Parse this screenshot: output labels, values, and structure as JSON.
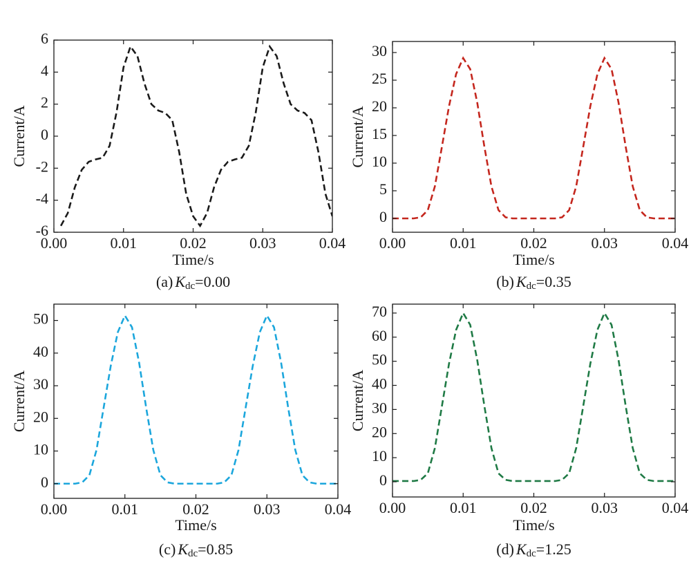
{
  "chart_data": [
    {
      "type": "line",
      "xlabel": "Time/s",
      "ylabel": "Current/A",
      "caption_prefix": "(a)",
      "caption_symbol": "K",
      "caption_subscript": "dc",
      "caption_value": "=0.00",
      "color": "#1a1a1a",
      "xlim": [
        0,
        0.04
      ],
      "xticks": [
        {
          "value": 0,
          "label": "0.00"
        },
        {
          "value": 0.01,
          "label": "0.01"
        },
        {
          "value": 0.02,
          "label": "0.02"
        },
        {
          "value": 0.03,
          "label": "0.03"
        },
        {
          "value": 0.04,
          "label": "0.04"
        }
      ],
      "ylim": [
        -6,
        6
      ],
      "yticks": [
        -6,
        -4,
        -2,
        0,
        2,
        4,
        6
      ],
      "x": [
        0.001,
        0.002,
        0.003,
        0.004,
        0.005,
        0.006,
        0.007,
        0.008,
        0.009,
        0.01,
        0.011,
        0.012,
        0.013,
        0.014,
        0.015,
        0.016,
        0.017,
        0.018,
        0.019,
        0.02,
        0.021,
        0.022,
        0.023,
        0.024,
        0.025,
        0.026,
        0.027,
        0.028,
        0.029,
        0.03,
        0.031,
        0.032,
        0.033,
        0.034,
        0.035,
        0.036,
        0.037,
        0.038,
        0.039,
        0.04
      ],
      "values": [
        -5.6,
        -4.8,
        -3.2,
        -2.1,
        -1.6,
        -1.45,
        -1.35,
        -0.6,
        1.5,
        4.3,
        5.6,
        5.0,
        3.3,
        2.0,
        1.6,
        1.45,
        1.0,
        -1.0,
        -3.6,
        -5.0,
        -5.6,
        -4.8,
        -3.2,
        -2.1,
        -1.6,
        -1.45,
        -1.35,
        -0.6,
        1.5,
        4.3,
        5.6,
        5.0,
        3.3,
        2.0,
        1.6,
        1.45,
        1.0,
        -1.0,
        -3.6,
        -5.0
      ]
    },
    {
      "type": "line",
      "xlabel": "Time/s",
      "ylabel": "Current/A",
      "caption_prefix": "(b)",
      "caption_symbol": "K",
      "caption_subscript": "dc",
      "caption_value": "=0.35",
      "color": "#c4261d",
      "xlim": [
        0,
        0.04
      ],
      "xticks": [
        {
          "value": 0,
          "label": "0.00"
        },
        {
          "value": 0.01,
          "label": "0.01"
        },
        {
          "value": 0.02,
          "label": "0.02"
        },
        {
          "value": 0.03,
          "label": "0.03"
        },
        {
          "value": 0.04,
          "label": "0.04"
        }
      ],
      "ylim": [
        -2.5,
        32
      ],
      "yticks": [
        0,
        5,
        10,
        15,
        20,
        25,
        30
      ],
      "x": [
        0,
        0.001,
        0.002,
        0.003,
        0.004,
        0.005,
        0.006,
        0.007,
        0.008,
        0.009,
        0.01,
        0.011,
        0.012,
        0.013,
        0.014,
        0.015,
        0.016,
        0.017,
        0.018,
        0.019,
        0.02,
        0.021,
        0.022,
        0.023,
        0.024,
        0.025,
        0.026,
        0.027,
        0.028,
        0.029,
        0.03,
        0.031,
        0.032,
        0.033,
        0.034,
        0.035,
        0.036,
        0.037,
        0.038,
        0.039,
        0.04
      ],
      "values": [
        0,
        0,
        0,
        0,
        0.2,
        1.5,
        5.8,
        13,
        20.3,
        26.1,
        29,
        27,
        20.9,
        13,
        5.8,
        1.5,
        0.2,
        0,
        0,
        0,
        0,
        0,
        0,
        0,
        0.2,
        1.5,
        5.8,
        13,
        20.3,
        26.1,
        29,
        27,
        20.9,
        13,
        5.8,
        1.5,
        0.2,
        0,
        0,
        0,
        0
      ]
    },
    {
      "type": "line",
      "xlabel": "Time/s",
      "ylabel": "Current/A",
      "caption_prefix": "(c)",
      "caption_symbol": "K",
      "caption_subscript": "dc",
      "caption_value": "=0.85",
      "color": "#1ba6dc",
      "xlim": [
        0,
        0.04
      ],
      "xticks": [
        {
          "value": 0,
          "label": "0.00"
        },
        {
          "value": 0.01,
          "label": "0.01"
        },
        {
          "value": 0.02,
          "label": "0.02"
        },
        {
          "value": 0.03,
          "label": "0.03"
        },
        {
          "value": 0.04,
          "label": "0.04"
        }
      ],
      "ylim": [
        -4.5,
        55
      ],
      "yticks": [
        0,
        10,
        20,
        30,
        40,
        50
      ],
      "x": [
        0,
        0.001,
        0.002,
        0.003,
        0.004,
        0.005,
        0.006,
        0.007,
        0.008,
        0.009,
        0.01,
        0.011,
        0.012,
        0.013,
        0.014,
        0.015,
        0.016,
        0.017,
        0.018,
        0.019,
        0.02,
        0.021,
        0.022,
        0.023,
        0.024,
        0.025,
        0.026,
        0.027,
        0.028,
        0.029,
        0.03,
        0.031,
        0.032,
        0.033,
        0.034,
        0.035,
        0.036,
        0.037,
        0.038,
        0.039,
        0.04
      ],
      "values": [
        0,
        0,
        0,
        0,
        0.4,
        2.6,
        10.3,
        23.2,
        36,
        46.4,
        51.5,
        47.9,
        37.1,
        23.2,
        10.3,
        2.6,
        0.4,
        0,
        0,
        0,
        0,
        0,
        0,
        0,
        0.4,
        2.6,
        10.3,
        23.2,
        36,
        46.4,
        51.5,
        47.9,
        37.1,
        23.2,
        10.3,
        2.6,
        0.4,
        0,
        0,
        0,
        0
      ]
    },
    {
      "type": "line",
      "xlabel": "Time/s",
      "ylabel": "Current/A",
      "caption_prefix": "(d)",
      "caption_symbol": "K",
      "caption_subscript": "dc",
      "caption_value": "=1.25",
      "color": "#1f7a45",
      "xlim": [
        0,
        0.04
      ],
      "xticks": [
        {
          "value": 0,
          "label": "0.00"
        },
        {
          "value": 0.01,
          "label": "0.01"
        },
        {
          "value": 0.02,
          "label": "0.02"
        },
        {
          "value": 0.03,
          "label": "0.03"
        },
        {
          "value": 0.04,
          "label": "0.04"
        }
      ],
      "ylim": [
        -6.3,
        73.7
      ],
      "yticks": [
        0,
        10,
        20,
        30,
        40,
        50,
        60,
        70
      ],
      "x": [
        0,
        0.001,
        0.002,
        0.003,
        0.004,
        0.005,
        0.006,
        0.007,
        0.008,
        0.009,
        0.01,
        0.011,
        0.012,
        0.013,
        0.014,
        0.015,
        0.016,
        0.017,
        0.018,
        0.019,
        0.02,
        0.021,
        0.022,
        0.023,
        0.024,
        0.025,
        0.026,
        0.027,
        0.028,
        0.029,
        0.03,
        0.031,
        0.032,
        0.033,
        0.034,
        0.035,
        0.036,
        0.037,
        0.038,
        0.039,
        0.04
      ],
      "values": [
        0.3,
        0.3,
        0.3,
        0.3,
        0.8,
        3.5,
        14,
        31.5,
        49,
        63,
        70,
        65.1,
        50.4,
        31.5,
        14,
        3.5,
        0.8,
        0.3,
        0.3,
        0.3,
        0.3,
        0.3,
        0.3,
        0.3,
        0.8,
        3.5,
        14,
        31.5,
        49,
        63,
        70,
        65.1,
        50.4,
        31.5,
        14,
        3.5,
        0.8,
        0.3,
        0.3,
        0.3,
        0.3
      ]
    }
  ]
}
